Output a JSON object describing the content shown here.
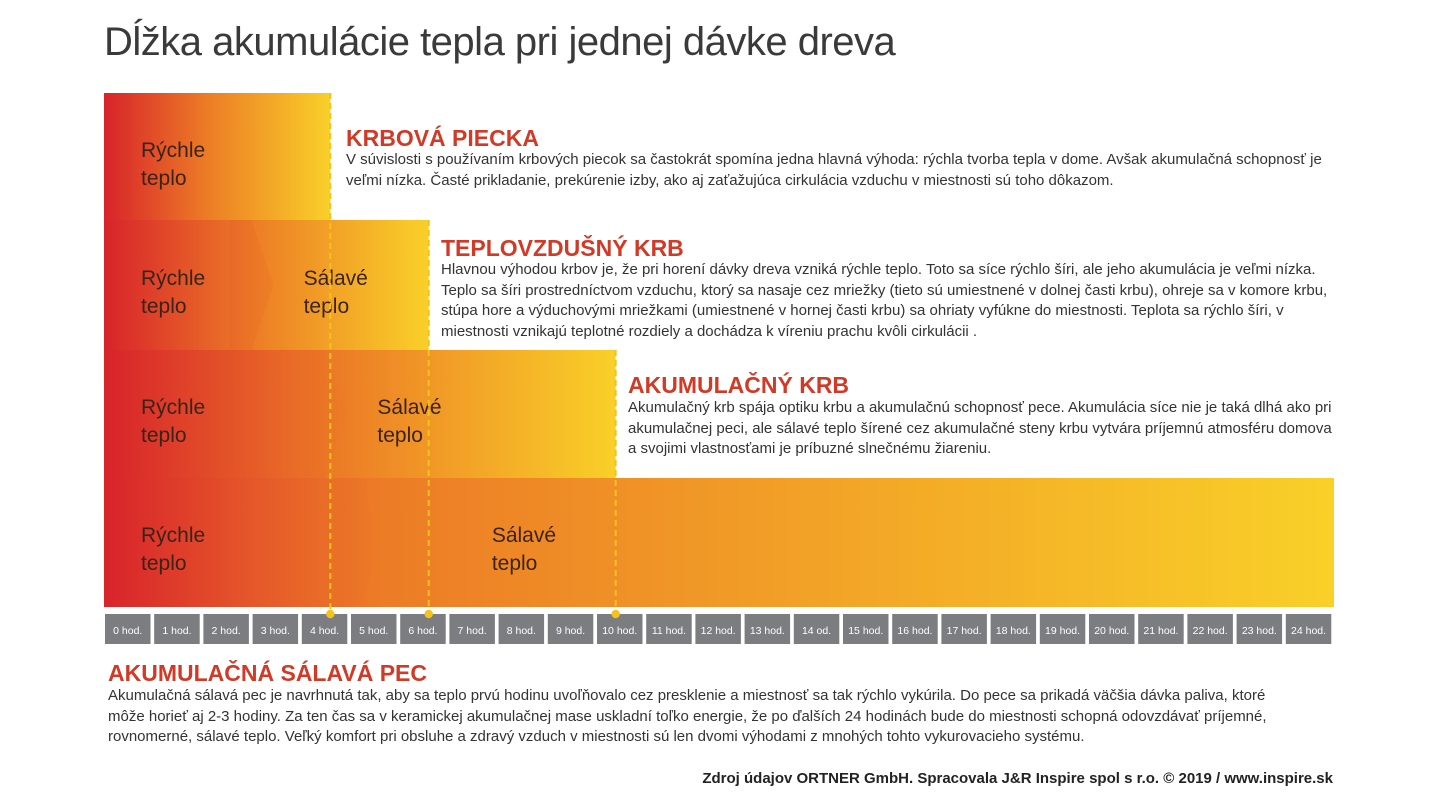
{
  "page": {
    "title": "Dĺžka akumulácie tepla pri jednej dávke dreva",
    "source": "Zdroj údajov ORTNER GmbH. Spracovala J&R Inspire spol s r.o. © 2019 / www.inspire.sk"
  },
  "colors": {
    "red": "#d8232b",
    "orange": "#ec7b26",
    "yellow": "#f9d028",
    "heading": "#d13a27",
    "tick_box": "#7c7d80"
  },
  "sections": [
    {
      "title": "KRBOVÁ PIECKA",
      "text": "V súvislosti s používaním krbových piecok sa častokrát spomína jedna hlavná výhoda: rýchla tvorba tepla v dome. Avšak akumulačná schopnosť je veľmi nízka. Časté prikladanie, prekúrenie izby, ako aj zaťažujúca cirkulácia vzduchu v miestnosti sú toho dôkazom."
    },
    {
      "title": "TEPLOVZDUŠNÝ KRB",
      "text": "Hlavnou výhodou krbov je, že pri horení dávky dreva vzniká rýchle teplo. Toto sa síce rýchlo šíri, ale jeho akumulácia je veľmi nízka. Teplo sa šíri prostredníctvom vzduchu, ktorý sa nasaje cez mriežky (tieto sú umiestnené v dolnej časti krbu), ohreje sa v komore krbu, stúpa hore a výduchovými mriežkami (umiestnené v hornej časti krbu) sa ohriaty vyfúkne do miestnosti.  Teplota sa rýchlo šíri, v miestnosti vznikajú teplotné rozdiely a dochádza k víreniu prachu kvôli cirkulácii ."
    },
    {
      "title": "AKUMULAČNÝ KRB",
      "text": "Akumulačný krb spája optiku krbu a akumulačnú schopnosť pece. Akumulácia síce nie je taká dlhá ako pri akumulačnej peci, ale sálavé teplo šírené cez akumulačné steny krbu vytvára príjemnú atmosféru domova a svojimi vlastnosťami je príbuzné slnečnému žiareniu."
    },
    {
      "title": "AKUMULAČNÁ SÁLAVÁ PEC",
      "text": "Akumulačná sálavá pec je navrhnutá tak, aby sa teplo prvú hodinu uvoľňovalo cez presklenie a miestnosť sa tak rýchlo vykúrila. Do pece sa prikadá väčšia dávka paliva, ktoré môže horieť aj 2-3 hodiny. Za ten čas sa v keramickej akumulačnej mase uskladní toľko energie, že po ďalších 24 hodinách bude do miestnosti schopná odovzdávať príjemné, rovnomerné, sálavé teplo. Veľký komfort pri obsluhe a zdravý vzduch v miestnosti sú len dvomi výhodami z mnohých tohto vykurovacieho systému."
    }
  ],
  "chart_data": {
    "type": "bar",
    "orientation": "horizontal",
    "x_unit": "hod.",
    "xlim": [
      0,
      25
    ],
    "x_ticks": [
      "0 hod.",
      "1 hod.",
      "2 hod.",
      "3 hod.",
      "4 hod.",
      "5 hod.",
      "6 hod.",
      "7 hod.",
      "8 hod.",
      "9 hod.",
      "10 hod.",
      "11 hod.",
      "12 hod.",
      "13 hod.",
      "14 od.",
      "15 hod.",
      "16 hod.",
      "17 hod.",
      "18 hod.",
      "19 hod.",
      "20 hod.",
      "21 hod.",
      "22 hod.",
      "23 hod.",
      "24 hod."
    ],
    "markers": [
      4.6,
      6.6,
      10.4
    ],
    "categories": [
      "KRBOVÁ PIECKA",
      "TEPLOVZDUŠNÝ KRB",
      "AKUMULAČNÝ KRB",
      "AKUMULAČNÁ SÁLAVÁ PEC"
    ],
    "bars": [
      {
        "end": 4.6,
        "segments": [
          {
            "label": "Rýchle teplo",
            "from": 0,
            "to": 4.6
          }
        ]
      },
      {
        "end": 6.6,
        "segments": [
          {
            "label": "Rýchle teplo",
            "from": 0,
            "to": 3.0
          },
          {
            "label": "Sálavé teplo",
            "from": 3.0,
            "to": 6.6
          }
        ]
      },
      {
        "end": 10.4,
        "segments": [
          {
            "label": "Rýchle teplo",
            "from": 0,
            "to": 4.5
          },
          {
            "label": "Sálavé teplo",
            "from": 4.5,
            "to": 10.4
          }
        ]
      },
      {
        "end": 25,
        "segments": [
          {
            "label": "Rýchle teplo",
            "from": 0,
            "to": 5.2
          },
          {
            "label": "Sálavé teplo",
            "from": 5.2,
            "to": 25
          }
        ]
      }
    ]
  }
}
